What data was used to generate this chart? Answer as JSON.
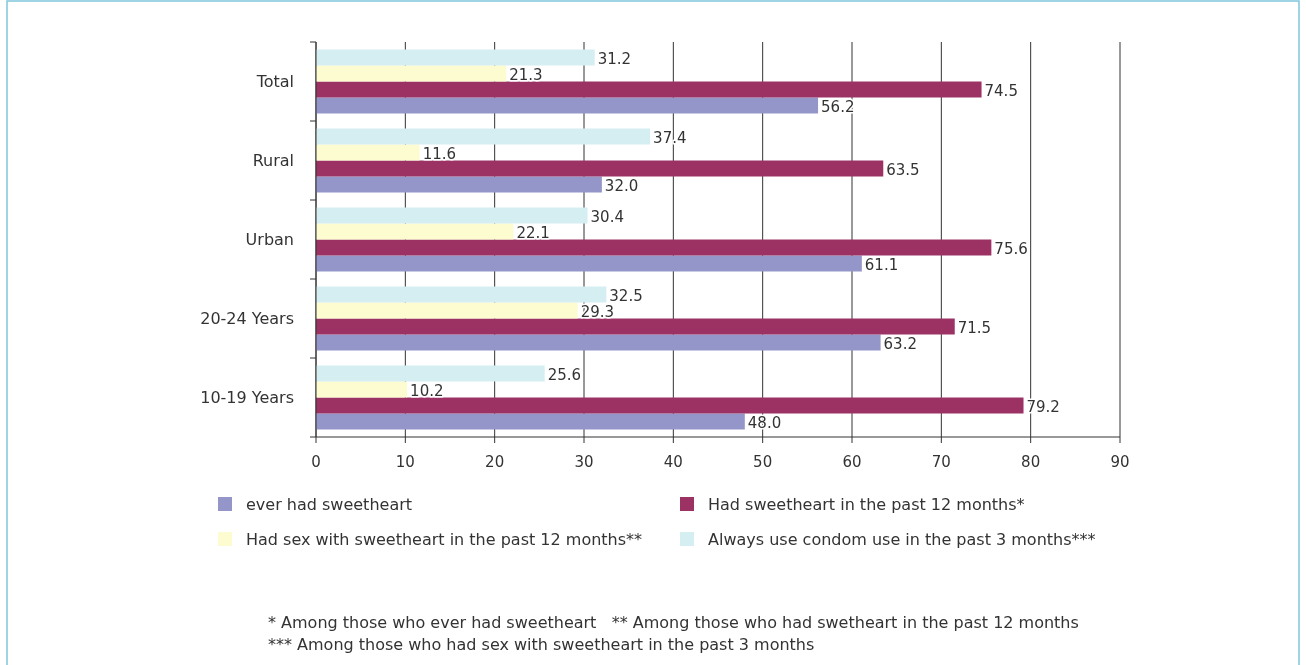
{
  "chart_data": {
    "type": "bar",
    "orientation": "horizontal",
    "categories": [
      "Total",
      "Rural",
      "Urban",
      "20-24 Years",
      "10-19 Years"
    ],
    "series": [
      {
        "name": "ever had sweetheart",
        "color": "#9495c8",
        "values": [
          56.2,
          32.0,
          61.1,
          63.2,
          48.0
        ],
        "value_labels": [
          "56.2",
          "32.0",
          "61.1",
          "63.2",
          "48.0"
        ]
      },
      {
        "name": "Had sweetheart in the past 12 months*",
        "color": "#9c3264",
        "values": [
          74.5,
          63.5,
          75.6,
          71.5,
          79.2
        ],
        "value_labels": [
          "74.5",
          "63.5",
          "75.6",
          "71.5",
          "79.2"
        ]
      },
      {
        "name": "Had sex with sweetheart in the past 12 months**",
        "color": "#fdfbd0",
        "values": [
          21.3,
          11.6,
          22.1,
          29.3,
          10.2
        ],
        "value_labels": [
          "21.3",
          "11.6",
          "22.1",
          "29.3",
          "10.2"
        ]
      },
      {
        "name": "Always use condom use in the past 3 months***",
        "color": "#d5eef2",
        "values": [
          31.2,
          37.4,
          30.4,
          32.5,
          25.6
        ],
        "value_labels": [
          "31.2",
          "37.4",
          "30.4",
          "32.5",
          "25.6"
        ]
      }
    ],
    "xlim": [
      0,
      90
    ],
    "xticks": [
      0,
      10,
      20,
      30,
      40,
      50,
      60,
      70,
      80,
      90
    ],
    "grid": "x",
    "legend": "bottom",
    "annotations": [
      "* Among those who ever had sweetheart   ** Among those who had swetheart in the past 12 months",
      "*** Among those who had sex with sweetheart in the past 3 months"
    ]
  }
}
